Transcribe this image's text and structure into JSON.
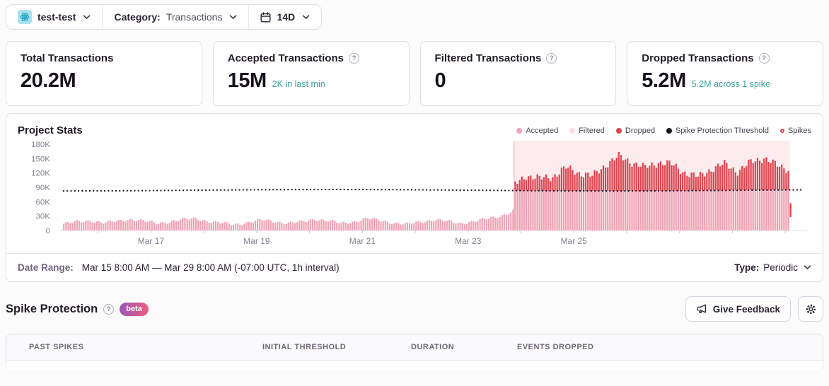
{
  "topbar": {
    "project_name": "test-test",
    "category_label": "Category:",
    "category_value": "Transactions",
    "range_value": "14D"
  },
  "cards": [
    {
      "title": "Total Transactions",
      "value": "20.2M",
      "subtext": ""
    },
    {
      "title": "Accepted Transactions",
      "value": "15M",
      "subtext": "2K in last min"
    },
    {
      "title": "Filtered Transactions",
      "value": "0",
      "subtext": ""
    },
    {
      "title": "Dropped Transactions",
      "value": "5.2M",
      "subtext": "5.2M across 1 spike"
    }
  ],
  "chart_data": {
    "type": "bar",
    "stacked": true,
    "title": "Project Stats",
    "x_start": "Mar 15 8:00 AM",
    "x_end": "Mar 29 8:00 AM",
    "interval_hours": 1,
    "n_points": 336,
    "x_tick_labels": [
      "Mar 17",
      "Mar 19",
      "Mar 21",
      "Mar 23",
      "Mar 25"
    ],
    "x_tick_hours": [
      40,
      88,
      136,
      184,
      232
    ],
    "day_tick_start_hour": 16,
    "day_tick_every_hours": 24,
    "ylim": [
      0,
      180000
    ],
    "y_tick_values_k": [
      180,
      150,
      120,
      90,
      60,
      30,
      0
    ],
    "y_tick_labels": [
      "180K",
      "150K",
      "120K",
      "90K",
      "60K",
      "30K",
      "0"
    ],
    "grid": false,
    "legend_position": "top-right",
    "threshold_k": 84,
    "spike": {
      "start_hour": 205,
      "end_hour": 329,
      "count": 1,
      "events_dropped": "5.2M"
    },
    "series": [
      {
        "name": "Accepted",
        "color": "#f0a4b6",
        "unit": "K",
        "control_step_hours": 6,
        "control_values": [
          14,
          18,
          21,
          16,
          19,
          24,
          20,
          15,
          18,
          23,
          25,
          19,
          15,
          13,
          17,
          22,
          19,
          15,
          18,
          24,
          20,
          15,
          19,
          25,
          21,
          16,
          13,
          18,
          23,
          19,
          15,
          19,
          24,
          30,
          40,
          86,
          86,
          86,
          86,
          86,
          86,
          86,
          86,
          86,
          86,
          86,
          86,
          86,
          86,
          86,
          86,
          86,
          86,
          86,
          86,
          86,
          86
        ]
      },
      {
        "name": "Dropped",
        "color": "#e0444f",
        "unit": "K",
        "control_step_hours": 6,
        "control_values": [
          0,
          0,
          0,
          0,
          0,
          0,
          0,
          0,
          0,
          0,
          0,
          0,
          0,
          0,
          0,
          0,
          0,
          0,
          0,
          0,
          0,
          0,
          0,
          0,
          0,
          0,
          0,
          0,
          0,
          0,
          0,
          0,
          0,
          0,
          10,
          32,
          25,
          30,
          48,
          38,
          30,
          55,
          72,
          60,
          48,
          60,
          55,
          38,
          28,
          45,
          55,
          40,
          58,
          68,
          50,
          42,
          40
        ]
      },
      {
        "name": "Filtered",
        "color": "#f7dbe3",
        "unit": "K",
        "constant_value": 0
      }
    ],
    "final_partial_bar": {
      "hour": 330,
      "from_k": 28,
      "to_k": 57,
      "color": "#e0444f"
    },
    "legend": [
      {
        "label": "Accepted",
        "color": "#f0a4b6",
        "marker": "dot"
      },
      {
        "label": "Filtered",
        "color": "#f7dbe3",
        "marker": "dot"
      },
      {
        "label": "Dropped",
        "color": "#e0444f",
        "marker": "dot"
      },
      {
        "label": "Spike Protection Threshold",
        "color": "#18121f",
        "marker": "dot"
      },
      {
        "label": "Spikes",
        "color": "#e0444f",
        "marker": "ring"
      }
    ]
  },
  "footer": {
    "label": "Date Range:",
    "value": "Mar 15 8:00 AM — Mar 29 8:00 AM (-07:00 UTC, 1h interval)",
    "type_label": "Type:",
    "type_value": "Periodic"
  },
  "spike_section": {
    "title": "Spike Protection",
    "beta_label": "beta",
    "feedback_label": "Give Feedback"
  },
  "table": {
    "headers": [
      "PAST SPIKES",
      "INITIAL THRESHOLD",
      "DURATION",
      "EVENTS DROPPED"
    ]
  },
  "colors": {
    "accepted_pink": "#f0a4b6",
    "filtered_pink": "#f7dbe3",
    "dropped_red": "#e0444f",
    "threshold_black": "#18121f",
    "spike_region_fill": "#fceced",
    "teal_subtext": "#3aa09a",
    "beta_gradient_start": "#9c55b8",
    "beta_gradient_end": "#ef5e7f"
  }
}
